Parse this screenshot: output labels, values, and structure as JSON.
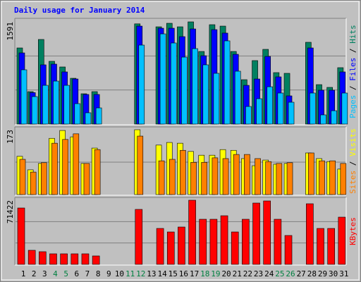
{
  "chart_data": [
    {
      "type": "bar",
      "title": "Daily usage for January 2014",
      "title_color": "#0000ff",
      "legend_separator": " / ",
      "ylim": [
        0,
        1591
      ],
      "yticks": [
        1591
      ],
      "grid_divisions": 3,
      "series": [
        {
          "name": "Hits",
          "color": "#008060",
          "values": [
            1185,
            505,
            1317,
            977,
            889,
            713,
            472,
            505,
            0,
            0,
            0,
            1560,
            0,
            1514,
            1569,
            1514,
            1591,
            1130,
            1547,
            1525,
            1130,
            691,
            988,
            1163,
            801,
            790,
            0,
            1273,
            614,
            571,
            878
          ]
        },
        {
          "name": "Files",
          "color": "#0000ff",
          "values": [
            1108,
            490,
            922,
            933,
            812,
            702,
            461,
            461,
            0,
            0,
            0,
            1525,
            0,
            1492,
            1492,
            1361,
            1481,
            1064,
            1470,
            1416,
            1086,
            603,
            702,
            1053,
            735,
            439,
            0,
            1185,
            527,
            527,
            812
          ]
        },
        {
          "name": "Pages",
          "color": "#00c0ff",
          "values": [
            845,
            428,
            603,
            669,
            603,
            318,
            176,
            252,
            0,
            0,
            0,
            1229,
            0,
            1404,
            1262,
            1042,
            1174,
            922,
            790,
            1295,
            823,
            274,
            395,
            581,
            483,
            340,
            0,
            483,
            143,
            208,
            483
          ]
        }
      ]
    },
    {
      "type": "bar",
      "legend_separator": " / ",
      "ylim": [
        0,
        173
      ],
      "yticks": [
        173
      ],
      "grid_divisions": 2,
      "series": [
        {
          "name": "Visits",
          "color": "#ffff00",
          "values": [
            102,
            66,
            83,
            150,
            171,
            154,
            83,
            124,
            0,
            0,
            0,
            173,
            0,
            132,
            139,
            137,
            115,
            105,
            105,
            120,
            118,
            96,
            77,
            92,
            81,
            83,
            0,
            111,
            96,
            88,
            68
          ]
        },
        {
          "name": "Sites",
          "color": "#ff8000",
          "values": [
            94,
            60,
            85,
            137,
            147,
            162,
            83,
            120,
            0,
            0,
            0,
            156,
            0,
            90,
            94,
            118,
            86,
            86,
            98,
            96,
            107,
            107,
            96,
            88,
            83,
            85,
            0,
            111,
            90,
            90,
            83
          ]
        }
      ]
    },
    {
      "type": "bar",
      "ylim": [
        0,
        71422
      ],
      "yticks": [
        71422
      ],
      "grid_divisions": 3,
      "categories": [
        "1",
        "2",
        "3",
        "4",
        "5",
        "6",
        "7",
        "8",
        "9",
        "10",
        "11",
        "12",
        "13",
        "14",
        "15",
        "16",
        "17",
        "18",
        "19",
        "20",
        "21",
        "22",
        "23",
        "24",
        "25",
        "26",
        "27",
        "28",
        "29",
        "30",
        "31"
      ],
      "highlight": [
        3,
        4,
        10,
        11,
        17,
        18,
        24,
        25
      ],
      "highlight_color": "#008040",
      "category_color": "#000000",
      "series": [
        {
          "name": "KBytes",
          "color": "#ff0000",
          "values": [
            62788,
            15697,
            14128,
            11773,
            11773,
            11773,
            11773,
            9418,
            0,
            0,
            0,
            61219,
            0,
            40028,
            36103,
            41597,
            71422,
            50231,
            50231,
            54155,
            36103,
            50231,
            68283,
            70637,
            50231,
            32179,
            0,
            67497,
            40028,
            40028,
            52585
          ]
        }
      ]
    }
  ]
}
